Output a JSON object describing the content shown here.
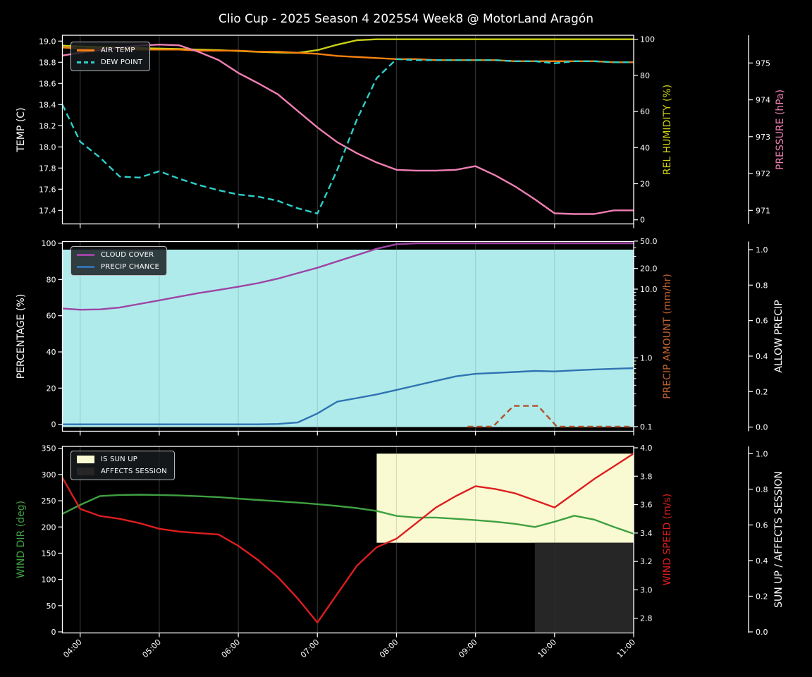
{
  "title": "Clio Cup - 2025 Season 4 2025S4 Week8 @ MotorLand Aragón",
  "colors": {
    "air_temp": "#f8820f",
    "dew_point": "#2ecfc9",
    "rel_humidity": "#cdd117",
    "pressure": "#ef7fb2",
    "cloud_cover": "#9d44a4",
    "precip_chance": "#2f73b2",
    "precip_amount": "#b3512a",
    "allow_precip_fill": "#b0ebeb",
    "wind_dir": "#3fa041",
    "wind_speed": "#dd1e1e",
    "sun_up_fill": "#fafad2",
    "affects_fill": "#262626",
    "background": "#000000",
    "axis": "#ffffff",
    "grid": "#2e2e2e"
  },
  "x_axis": {
    "tick_labels": [
      "04:00",
      "05:00",
      "06:00",
      "07:00",
      "08:00",
      "09:00",
      "10:00",
      "11:00"
    ],
    "tick_hours": [
      4,
      5,
      6,
      7,
      8,
      9,
      10,
      11
    ],
    "start_hour": 3.775,
    "end_hour": 11.0
  },
  "panels": [
    {
      "name": "temperature",
      "left_axis": {
        "label": "TEMP (C)",
        "color": "#ffffff",
        "scale": "temp",
        "tick_values": [
          17.4,
          17.6,
          17.8,
          18.0,
          18.2,
          18.4,
          18.6,
          18.8,
          19.0
        ],
        "tick_labels": [
          "17.4",
          "17.6",
          "17.8",
          "18.0",
          "18.2",
          "18.4",
          "18.6",
          "18.8",
          "19.0"
        ]
      },
      "right_axis": {
        "label": "REL HUMIDITY (%)",
        "color": "#cdd117",
        "scale": "humidity",
        "tick_values": [
          0,
          20,
          40,
          60,
          80,
          100
        ],
        "tick_labels": [
          "0",
          "20",
          "40",
          "60",
          "80",
          "100"
        ]
      },
      "far_axis": {
        "label": "PRESSURE (hPa)",
        "color": "#ef7fb2",
        "scale": "pressure",
        "tick_values": [
          971,
          972,
          973,
          974,
          975
        ],
        "tick_labels": [
          "971",
          "972",
          "973",
          "974",
          "975"
        ]
      },
      "legend": [
        {
          "label": "AIR TEMP",
          "sample": "line",
          "color_key": "air_temp"
        },
        {
          "label": "DEW POINT",
          "sample": "dash",
          "color_key": "dew_point"
        }
      ]
    },
    {
      "name": "precip",
      "left_axis": {
        "label": "PERCENTAGE (%)",
        "color": "#ffffff",
        "scale": "pct",
        "tick_values": [
          0,
          20,
          40,
          60,
          80,
          100
        ],
        "tick_labels": [
          "0",
          "20",
          "40",
          "60",
          "80",
          "100"
        ]
      },
      "right_axis": {
        "label": "PRECIP AMOUNT (mm/hr)",
        "color": "#c0622f",
        "scale": "amount",
        "tick_values": [
          0.1,
          1.0,
          10.0,
          20.0,
          50.0
        ],
        "tick_labels": [
          "0.1",
          "1.0",
          "10.0",
          "20.0",
          "50.0"
        ]
      },
      "far_axis": {
        "label": "ALLOW PRECIP",
        "color": "#ffffff",
        "scale": "allow",
        "tick_values": [
          0.0,
          0.2,
          0.4,
          0.6,
          0.8,
          1.0
        ],
        "tick_labels": [
          "0.0",
          "0.2",
          "0.4",
          "0.6",
          "0.8",
          "1.0"
        ]
      },
      "legend": [
        {
          "label": "CLOUD COVER",
          "sample": "line",
          "color_key": "cloud_cover"
        },
        {
          "label": "PRECIP CHANCE",
          "sample": "line",
          "color_key": "precip_chance"
        }
      ]
    },
    {
      "name": "wind",
      "left_axis": {
        "label": "WIND DIR (deg)",
        "color": "#3fa041",
        "scale": "dir",
        "tick_values": [
          0,
          50,
          100,
          150,
          200,
          250,
          300,
          350
        ],
        "tick_labels": [
          "0",
          "50",
          "100",
          "150",
          "200",
          "250",
          "300",
          "350"
        ]
      },
      "right_axis": {
        "label": "WIND SPEED (m/s)",
        "color": "#dd1e1e",
        "scale": "speed",
        "tick_values": [
          2.8,
          3.0,
          3.2,
          3.4,
          3.6,
          3.8,
          4.0
        ],
        "tick_labels": [
          "2.8",
          "3.0",
          "3.2",
          "3.4",
          "3.6",
          "3.8",
          "4.0"
        ]
      },
      "far_axis": {
        "label": "SUN UP / AFFECTS SESSION",
        "color": "#ffffff",
        "scale": "sun",
        "tick_values": [
          0.0,
          0.2,
          0.4,
          0.6,
          0.8,
          1.0
        ],
        "tick_labels": [
          "0.0",
          "0.2",
          "0.4",
          "0.6",
          "0.8",
          "1.0"
        ]
      },
      "legend": [
        {
          "label": "IS SUN UP",
          "sample": "patch",
          "color_key": "sun_up_fill"
        },
        {
          "label": "AFFECTS SESSION",
          "sample": "patch",
          "color_key": "affects_fill"
        }
      ]
    }
  ],
  "chart_data": [
    {
      "type": "line",
      "panel": "temperature",
      "title": "Air temp / dew point with humidity and pressure",
      "x_hours": [
        3.775,
        4.0,
        4.25,
        4.5,
        4.75,
        5.0,
        5.25,
        5.5,
        5.75,
        6.0,
        6.25,
        6.5,
        6.75,
        7.0,
        7.25,
        7.5,
        7.75,
        8.0,
        8.25,
        8.5,
        8.75,
        9.0,
        9.25,
        9.5,
        9.75,
        10.0,
        10.25,
        10.5,
        10.75,
        11.0
      ],
      "series": [
        {
          "name": "REL HUMIDITY (%)",
          "scale": "humidity",
          "color_key": "rel_humidity",
          "dash": null,
          "values": [
            96.5,
            96.0,
            95.7,
            95.4,
            95.1,
            94.9,
            94.6,
            94.3,
            94.0,
            93.5,
            93.0,
            92.7,
            92.5,
            94.0,
            97.0,
            99.5,
            100,
            100,
            100,
            100,
            100,
            100,
            100,
            100,
            100,
            100,
            100,
            100,
            100,
            100
          ]
        },
        {
          "name": "AIR TEMP (C)",
          "scale": "temp",
          "color_key": "air_temp",
          "dash": null,
          "values": [
            18.94,
            18.93,
            18.93,
            18.93,
            18.92,
            18.92,
            18.92,
            18.91,
            18.91,
            18.91,
            18.9,
            18.9,
            18.89,
            18.88,
            18.86,
            18.85,
            18.84,
            18.83,
            18.83,
            18.82,
            18.82,
            18.82,
            18.82,
            18.81,
            18.81,
            18.81,
            18.81,
            18.81,
            18.8,
            18.8
          ]
        },
        {
          "name": "PRESSURE (hPa)",
          "scale": "pressure",
          "color_key": "pressure",
          "dash": null,
          "values": [
            975.2,
            975.28,
            975.35,
            975.42,
            975.47,
            975.5,
            975.48,
            975.3,
            975.08,
            974.73,
            974.45,
            974.15,
            973.7,
            973.25,
            972.85,
            972.55,
            972.3,
            972.1,
            972.08,
            972.08,
            972.1,
            972.2,
            971.95,
            971.65,
            971.3,
            970.92,
            970.9,
            970.9,
            971.0,
            971.0
          ]
        },
        {
          "name": "DEW POINT (C)",
          "scale": "temp",
          "color_key": "dew_point",
          "dash": [
            9,
            5
          ],
          "values": [
            18.4,
            18.05,
            17.9,
            17.72,
            17.71,
            17.77,
            17.7,
            17.64,
            17.59,
            17.55,
            17.53,
            17.49,
            17.42,
            17.37,
            17.78,
            18.26,
            18.65,
            18.83,
            18.82,
            18.82,
            18.82,
            18.82,
            18.82,
            18.81,
            18.81,
            18.79,
            18.81,
            18.81,
            18.8,
            18.8
          ]
        }
      ],
      "bands": []
    },
    {
      "type": "line",
      "panel": "precip",
      "title": "Cloud cover, precip chance, precip amount, allow precip",
      "x_hours": [
        3.775,
        4.0,
        4.25,
        4.5,
        4.75,
        5.0,
        5.25,
        5.5,
        5.75,
        6.0,
        6.25,
        6.5,
        6.75,
        7.0,
        7.25,
        7.5,
        7.75,
        8.0,
        8.25,
        8.5,
        8.75,
        9.0,
        9.25,
        9.5,
        9.75,
        10.0,
        10.25,
        10.5,
        10.75,
        11.0
      ],
      "series": [
        {
          "name": "CLOUD COVER (%)",
          "scale": "pct",
          "color_key": "cloud_cover",
          "dash": null,
          "values": [
            64,
            63.3,
            63.5,
            64.5,
            66.5,
            68.5,
            70.5,
            72.5,
            74.2,
            76,
            78,
            80.5,
            83.5,
            86.5,
            90,
            93.5,
            97,
            99.5,
            100,
            100,
            100,
            100,
            100,
            100,
            100,
            100,
            100,
            100,
            100,
            100
          ]
        },
        {
          "name": "PRECIP CHANCE (%)",
          "scale": "pct",
          "color_key": "precip_chance",
          "dash": null,
          "values": [
            0,
            0,
            0,
            0,
            0,
            0,
            0,
            0,
            0,
            0,
            0,
            0.2,
            1,
            6,
            12.5,
            14.5,
            16.5,
            19,
            21.5,
            24,
            26.5,
            27.9,
            28.4,
            28.9,
            29.5,
            29.2,
            29.8,
            30.3,
            30.7,
            31
          ]
        },
        {
          "name": "PRECIP AMOUNT (mm/hr)",
          "scale": "amount",
          "color_key": "precip_amount",
          "dash": [
            8,
            5
          ],
          "points": [
            [
              8.9,
              0.1
            ],
            [
              9.22,
              0.1
            ],
            [
              9.48,
              0.2
            ],
            [
              9.79,
              0.2
            ],
            [
              10.03,
              0.1
            ],
            [
              10.5,
              0.1
            ],
            [
              11.0,
              0.1
            ]
          ]
        }
      ],
      "bands": [
        {
          "name": "ALLOW PRECIP",
          "scale": "allow",
          "x_from": 3.775,
          "x_to": 11.0,
          "v_from": 0.0,
          "v_to": 1.0,
          "color_key": "allow_precip_fill"
        }
      ]
    },
    {
      "type": "line",
      "panel": "wind",
      "title": "Wind direction / speed with sun-up and affects-session bands",
      "x_hours": [
        3.775,
        4.0,
        4.25,
        4.5,
        4.75,
        5.0,
        5.25,
        5.5,
        5.75,
        6.0,
        6.25,
        6.5,
        6.75,
        7.0,
        7.25,
        7.5,
        7.75,
        8.0,
        8.25,
        8.5,
        8.75,
        9.0,
        9.25,
        9.5,
        9.75,
        10.0,
        10.25,
        10.5,
        10.75,
        11.0
      ],
      "series": [
        {
          "name": "WIND DIR (deg)",
          "scale": "dir",
          "color_key": "wind_dir",
          "dash": null,
          "values": [
            225,
            242,
            259,
            261,
            261.5,
            261,
            260,
            258.5,
            257,
            254,
            251.5,
            249,
            246.5,
            243.5,
            240,
            236,
            230.5,
            221,
            218,
            218,
            215.5,
            213,
            210,
            206,
            200,
            210,
            221.5,
            214,
            200,
            187
          ]
        },
        {
          "name": "WIND SPEED (m/s)",
          "scale": "speed",
          "color_key": "wind_speed",
          "dash": null,
          "values": [
            3.79,
            3.57,
            3.52,
            3.5,
            3.47,
            3.43,
            3.41,
            3.4,
            3.39,
            3.31,
            3.21,
            3.09,
            2.94,
            2.77,
            2.97,
            3.17,
            3.3,
            3.36,
            3.47,
            3.58,
            3.66,
            3.73,
            3.71,
            3.68,
            3.63,
            3.58,
            3.68,
            3.78,
            3.87,
            3.96
          ]
        }
      ],
      "bands": [
        {
          "name": "IS SUN UP",
          "scale": "sun",
          "x_from": 7.75,
          "x_to": 11.0,
          "v_from": 0.5,
          "v_to": 1.0,
          "color_key": "sun_up_fill"
        },
        {
          "name": "AFFECTS SESSION",
          "scale": "sun",
          "x_from": 9.75,
          "x_to": 11.0,
          "v_from": 0.0,
          "v_to": 0.5,
          "color_key": "affects_fill"
        }
      ]
    }
  ]
}
